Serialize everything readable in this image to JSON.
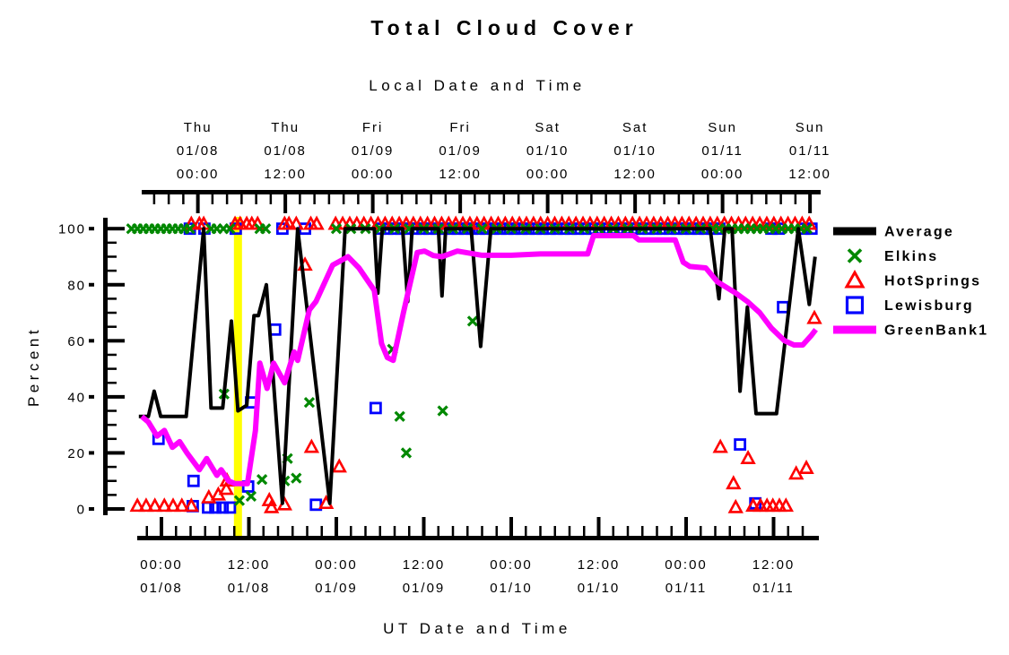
{
  "title": "Total Cloud Cover",
  "axes": {
    "top_title": "Local Date and Time",
    "bottom_title": "UT Date and Time",
    "y_title": "Percent",
    "y_ticks": [
      {
        "v": 0,
        "label": "0"
      },
      {
        "v": 20,
        "label": "20"
      },
      {
        "v": 40,
        "label": "40"
      },
      {
        "v": 60,
        "label": "60"
      },
      {
        "v": 80,
        "label": "80"
      },
      {
        "v": 100,
        "label": "100"
      }
    ],
    "y_minor_step": 5,
    "x_minor_step_hours": 2,
    "bottom_ticks": [
      {
        "h": 0,
        "time": "00:00",
        "date": "01/08"
      },
      {
        "h": 12,
        "time": "12:00",
        "date": "01/08"
      },
      {
        "h": 24,
        "time": "00:00",
        "date": "01/09"
      },
      {
        "h": 36,
        "time": "12:00",
        "date": "01/09"
      },
      {
        "h": 48,
        "time": "00:00",
        "date": "01/10"
      },
      {
        "h": 60,
        "time": "12:00",
        "date": "01/10"
      },
      {
        "h": 72,
        "time": "00:00",
        "date": "01/11"
      },
      {
        "h": 84,
        "time": "12:00",
        "date": "01/11"
      }
    ],
    "top_ticks": [
      {
        "h": 5,
        "day": "Thu",
        "date": "01/08",
        "time": "00:00"
      },
      {
        "h": 17,
        "day": "Thu",
        "date": "01/08",
        "time": "12:00"
      },
      {
        "h": 29,
        "day": "Fri",
        "date": "01/09",
        "time": "00:00"
      },
      {
        "h": 41,
        "day": "Fri",
        "date": "01/09",
        "time": "12:00"
      },
      {
        "h": 53,
        "day": "Sat",
        "date": "01/10",
        "time": "00:00"
      },
      {
        "h": 65,
        "day": "Sat",
        "date": "01/10",
        "time": "12:00"
      },
      {
        "h": 77,
        "day": "Sun",
        "date": "01/11",
        "time": "00:00"
      },
      {
        "h": 89,
        "day": "Sun",
        "date": "01/11",
        "time": "12:00"
      }
    ]
  },
  "colors": {
    "average": "#000000",
    "elkins": "#008800",
    "hotsprings": "#ff0000",
    "lewisburg": "#0000ff",
    "greenbank1": "#ff00ff",
    "event_marker": "#ffff00"
  },
  "legend": [
    {
      "label": "Average",
      "swatch": "line",
      "color": "#000000"
    },
    {
      "label": "Elkins",
      "swatch": "x",
      "color": "#008800"
    },
    {
      "label": "HotSprings",
      "swatch": "triangle",
      "color": "#ff0000"
    },
    {
      "label": "Lewisburg",
      "swatch": "square",
      "color": "#0000ff"
    },
    {
      "label": "GreenBank1",
      "swatch": "line",
      "color": "#ff00ff"
    }
  ],
  "chart_data": {
    "type": "line+scatter",
    "title": "Total Cloud Cover",
    "ylabel": "Percent",
    "x_unit": "hours since 01/08 00:00 UT; top axis shows local time (UT-5)",
    "xlim": [
      -3.1,
      89.8
    ],
    "ylim": [
      0,
      100
    ],
    "grid": false,
    "legend_position": "right",
    "event_marker": {
      "x_hours": 10.5,
      "color": "#ffff00"
    },
    "series": [
      {
        "name": "Average",
        "type": "line",
        "color": "#000000",
        "width": 4,
        "points": [
          [
            -3.1,
            33
          ],
          [
            -1.8,
            33
          ],
          [
            -1.0,
            42
          ],
          [
            -0.1,
            33
          ],
          [
            3.4,
            33
          ],
          [
            5.8,
            100
          ],
          [
            6.8,
            36
          ],
          [
            8.4,
            36
          ],
          [
            9.6,
            67
          ],
          [
            10.5,
            35
          ],
          [
            11.7,
            37
          ],
          [
            12.7,
            69
          ],
          [
            13.3,
            69
          ],
          [
            14.4,
            80
          ],
          [
            16.6,
            2
          ],
          [
            18.7,
            100
          ],
          [
            23.1,
            2
          ],
          [
            25.2,
            100
          ],
          [
            29.2,
            100
          ],
          [
            29.7,
            77
          ],
          [
            30.3,
            100
          ],
          [
            33.1,
            100
          ],
          [
            33.8,
            74
          ],
          [
            34.4,
            100
          ],
          [
            38.0,
            100
          ],
          [
            38.5,
            76
          ],
          [
            39.0,
            100
          ],
          [
            42.5,
            100
          ],
          [
            43.8,
            58
          ],
          [
            45.2,
            100
          ],
          [
            75.3,
            100
          ],
          [
            76.5,
            75
          ],
          [
            77.3,
            100
          ],
          [
            78.3,
            100
          ],
          [
            79.4,
            42
          ],
          [
            80.4,
            72
          ],
          [
            81.6,
            34
          ],
          [
            84.4,
            34
          ],
          [
            87.4,
            100
          ],
          [
            88.9,
            73
          ],
          [
            89.7,
            90
          ]
        ]
      },
      {
        "name": "Elkins",
        "type": "scatter",
        "marker": "x",
        "color": "#008800",
        "points": [
          [
            8.6,
            41
          ],
          [
            10.7,
            3
          ],
          [
            12.3,
            4.5
          ],
          [
            13.8,
            10.5
          ],
          [
            16.9,
            10
          ],
          [
            17.3,
            18
          ],
          [
            18.5,
            11
          ],
          [
            20.3,
            38
          ],
          [
            31.7,
            57
          ],
          [
            32.7,
            33
          ],
          [
            33.6,
            20
          ],
          [
            38.6,
            35
          ],
          [
            42.7,
            67
          ]
        ],
        "at100_rows": [
          [
            -4.1,
            3.9,
            0.8
          ],
          [
            24,
            75,
            2
          ],
          [
            75.7,
            89.2,
            0.86
          ]
        ],
        "at100_singles": [
          6.8,
          7.6,
          8.5,
          9.4,
          13.5,
          14.3
        ]
      },
      {
        "name": "HotSprings",
        "type": "scatter",
        "marker": "triangle",
        "color": "#ff0000",
        "points": [
          [
            -3.3,
            1
          ],
          [
            -2.1,
            1
          ],
          [
            -0.9,
            1
          ],
          [
            0.4,
            1
          ],
          [
            1.6,
            1
          ],
          [
            2.8,
            1
          ],
          [
            4.1,
            1
          ],
          [
            6.5,
            4
          ],
          [
            7.8,
            5
          ],
          [
            8.9,
            7
          ],
          [
            9.0,
            10
          ],
          [
            14.8,
            3
          ],
          [
            15.1,
            0.5
          ],
          [
            16.9,
            1.5
          ],
          [
            19.7,
            87
          ],
          [
            20.6,
            22
          ],
          [
            22.6,
            2
          ],
          [
            24.4,
            15
          ],
          [
            76.7,
            22
          ],
          [
            78.5,
            9
          ],
          [
            78.8,
            0.5
          ],
          [
            80.5,
            18
          ],
          [
            81.2,
            1
          ],
          [
            82.2,
            1
          ],
          [
            83.1,
            1
          ],
          [
            83.9,
            1
          ],
          [
            84.8,
            1
          ],
          [
            85.7,
            1
          ],
          [
            87.1,
            12.5
          ],
          [
            88.5,
            14.5
          ],
          [
            89.6,
            68
          ]
        ],
        "at100_rows": [
          [
            23.9,
            89.6,
            0.97
          ]
        ],
        "at100_singles": [
          4.1,
          5.2,
          5.8,
          10.1,
          10.8,
          11.7,
          12.4,
          13.2,
          16.9,
          17.5,
          18.5,
          20.5,
          21.3
        ]
      },
      {
        "name": "Lewisburg",
        "type": "scatter",
        "marker": "square",
        "color": "#0000ff",
        "points": [
          [
            -0.4,
            25
          ],
          [
            4.3,
            1
          ],
          [
            4.4,
            10
          ],
          [
            6.4,
            0.5
          ],
          [
            7.4,
            0.5
          ],
          [
            8.4,
            0.5
          ],
          [
            9.4,
            0.5
          ],
          [
            11.9,
            8
          ],
          [
            12.3,
            38
          ],
          [
            15.6,
            64
          ],
          [
            21.2,
            1.5
          ],
          [
            29.4,
            36
          ],
          [
            79.4,
            23
          ],
          [
            81.5,
            2
          ],
          [
            85.3,
            72
          ]
        ],
        "at100_rows": [
          [
            30,
            77.5,
            0.97
          ]
        ],
        "at100_singles": [
          3.9,
          5.9,
          10.2,
          16.6,
          19.7,
          83.7,
          84.7,
          88.2,
          89.2
        ]
      },
      {
        "name": "GreenBank1",
        "type": "line",
        "color": "#ff00ff",
        "width": 6,
        "points": [
          [
            -2.7,
            33
          ],
          [
            -1.8,
            31
          ],
          [
            -0.6,
            26
          ],
          [
            0.4,
            28
          ],
          [
            1.5,
            22
          ],
          [
            2.5,
            24
          ],
          [
            3.5,
            20
          ],
          [
            5.2,
            14
          ],
          [
            6.2,
            18
          ],
          [
            7.6,
            12
          ],
          [
            8.2,
            14
          ],
          [
            9.2,
            10
          ],
          [
            10.1,
            9
          ],
          [
            11.8,
            9
          ],
          [
            12.9,
            28
          ],
          [
            13.5,
            52
          ],
          [
            14.5,
            43
          ],
          [
            15.4,
            52
          ],
          [
            16.9,
            45
          ],
          [
            18.2,
            56
          ],
          [
            18.7,
            53
          ],
          [
            20.3,
            71
          ],
          [
            21.2,
            74
          ],
          [
            23.5,
            87
          ],
          [
            25.6,
            90
          ],
          [
            27.1,
            86
          ],
          [
            29.2,
            78
          ],
          [
            30.2,
            59
          ],
          [
            31.0,
            54
          ],
          [
            31.8,
            53
          ],
          [
            33.2,
            70
          ],
          [
            35.1,
            91.5
          ],
          [
            36.1,
            92
          ],
          [
            37.3,
            90.4
          ],
          [
            38.5,
            90
          ],
          [
            40.6,
            92
          ],
          [
            44.0,
            90.5
          ],
          [
            48.0,
            90.5
          ],
          [
            52.0,
            91
          ],
          [
            58.5,
            91
          ],
          [
            59.3,
            97.5
          ],
          [
            64.8,
            97.5
          ],
          [
            65.5,
            96
          ],
          [
            70.5,
            96
          ],
          [
            71.6,
            88
          ],
          [
            72.5,
            86.5
          ],
          [
            74.7,
            86
          ],
          [
            76.3,
            81
          ],
          [
            78.8,
            77
          ],
          [
            80.4,
            74
          ],
          [
            82.1,
            70
          ],
          [
            83.7,
            64.5
          ],
          [
            85.5,
            60
          ],
          [
            86.8,
            58.5
          ],
          [
            88.0,
            58.5
          ],
          [
            89.2,
            62
          ],
          [
            89.8,
            64
          ]
        ]
      }
    ]
  }
}
